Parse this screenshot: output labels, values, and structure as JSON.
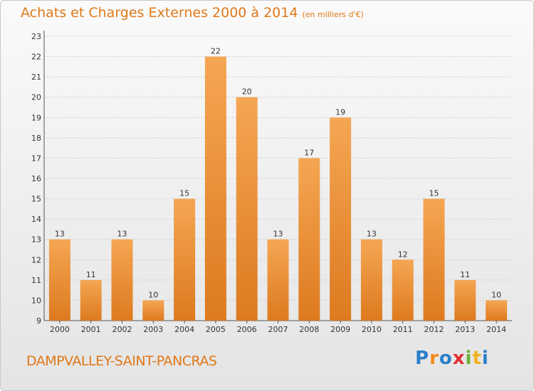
{
  "header": {
    "title": "Achats et Charges Externes 2000 à 2014",
    "unit": "(en milliers d'€)"
  },
  "footer": {
    "commune": "DAMPVALLEY-SAINT-PANCRAS",
    "logo": "Proxiti"
  },
  "colors": {
    "bar_top": "#f5a653",
    "bar_bottom": "#dd7a1f",
    "title": "#e07818"
  },
  "chart_data": {
    "type": "bar",
    "title": "Achats et Charges Externes 2000 à 2014",
    "subtitle": "(en milliers d'€)",
    "xlabel": "",
    "ylabel": "",
    "categories": [
      "2000",
      "2001",
      "2002",
      "2003",
      "2004",
      "2005",
      "2006",
      "2007",
      "2008",
      "2009",
      "2010",
      "2011",
      "2012",
      "2013",
      "2014"
    ],
    "values": [
      13,
      11,
      13,
      10,
      15,
      22,
      20,
      13,
      17,
      19,
      13,
      12,
      15,
      11,
      10
    ],
    "ylim": [
      9,
      23
    ],
    "yticks": [
      9,
      10,
      11,
      12,
      13,
      14,
      15,
      16,
      17,
      18,
      19,
      20,
      21,
      22,
      23
    ],
    "grid": true
  }
}
